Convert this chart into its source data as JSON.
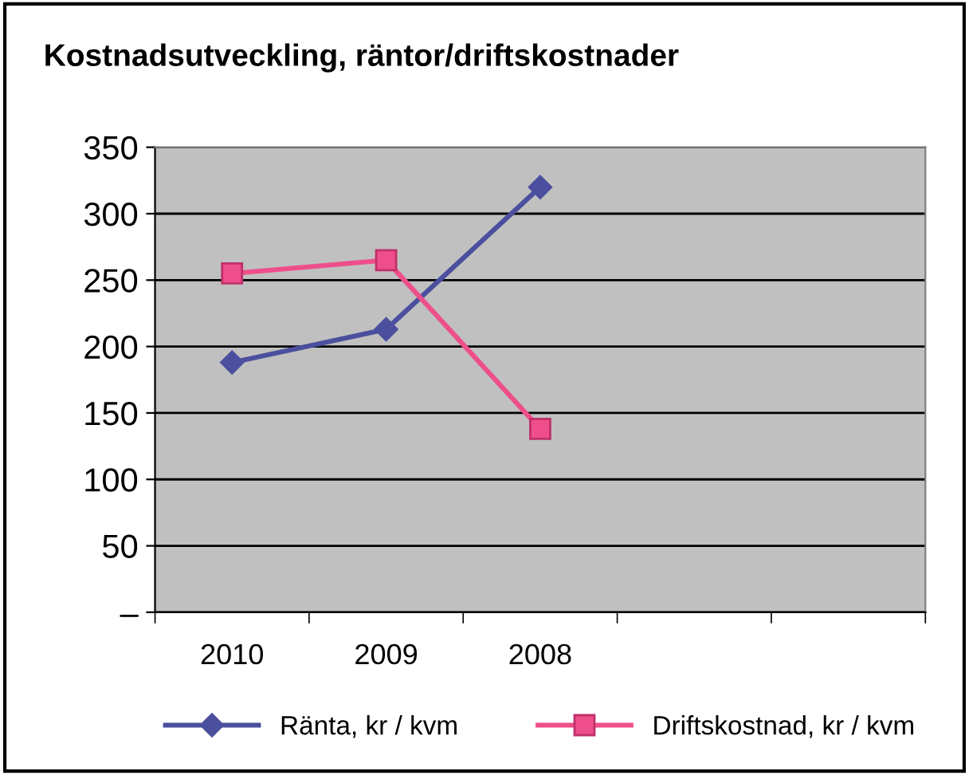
{
  "chart_data": {
    "type": "line",
    "title": "Kostnadsutveckling, räntor/driftskostnader",
    "categories": [
      "2010",
      "2009",
      "2008",
      null,
      null
    ],
    "series": [
      {
        "name": "Ränta, kr / kvm",
        "color": "#4b4f9e",
        "marker": "diamond",
        "values": [
          188,
          213,
          320,
          null,
          null
        ]
      },
      {
        "name": "Driftskostnad, kr / kvm",
        "color": "#ee4f8b",
        "marker": "square",
        "values": [
          255,
          265,
          138,
          null,
          null
        ]
      }
    ],
    "ylim": [
      0,
      350
    ],
    "yticks": [
      {
        "value": 0,
        "label": "–"
      },
      50,
      100,
      150,
      200,
      250,
      300,
      350
    ],
    "grid": "y",
    "legend": "bottom",
    "line_style": "solid"
  }
}
